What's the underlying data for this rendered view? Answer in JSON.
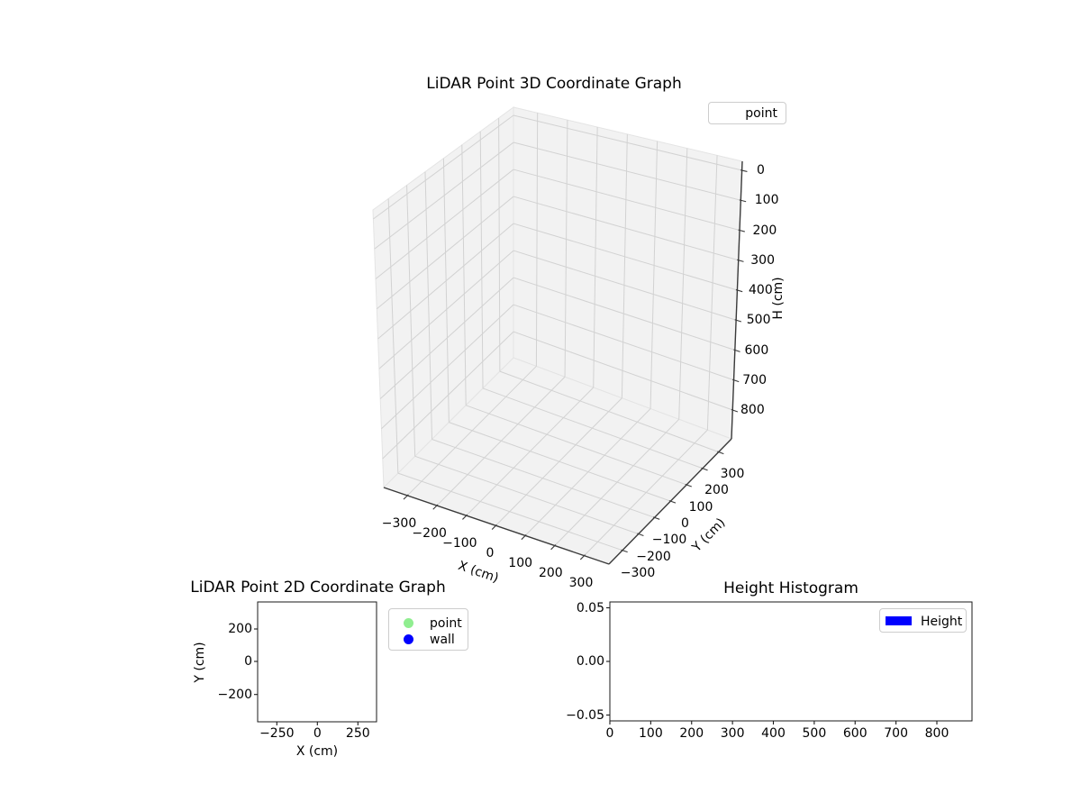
{
  "plot3d": {
    "title": "LiDAR Point 3D Coordinate Graph",
    "legend_label": "point",
    "xlabel": "X (cm)",
    "ylabel": "Y (cm)",
    "zlabel": "H (cm)",
    "x_ticks": [
      "−300",
      "−200",
      "−100",
      "0",
      "100",
      "200",
      "300"
    ],
    "y_ticks": [
      "300",
      "200",
      "100",
      "0",
      "−100",
      "−200",
      "−300"
    ],
    "z_ticks": [
      "0",
      "100",
      "200",
      "300",
      "400",
      "500",
      "600",
      "700",
      "800"
    ]
  },
  "plot2d": {
    "title": "LiDAR Point 2D Coordinate Graph",
    "xlabel": "X (cm)",
    "ylabel": "Y (cm)",
    "x_ticks": [
      "−250",
      "0",
      "250"
    ],
    "y_ticks": [
      "200",
      "0",
      "−200"
    ],
    "legend": [
      {
        "label": "point",
        "color": "#90ee90"
      },
      {
        "label": "wall",
        "color": "#0000ff"
      }
    ]
  },
  "hist": {
    "title": "Height Histogram",
    "x_ticks": [
      "0",
      "100",
      "200",
      "300",
      "400",
      "500",
      "600",
      "700",
      "800"
    ],
    "y_ticks": [
      "0.05",
      "0.00",
      "−0.05"
    ],
    "legend": {
      "label": "Height",
      "color": "#0000ff"
    }
  },
  "colors": {
    "pane": "#f2f2f2",
    "pane_edge": "#e4e4e4",
    "grid": "#d2d2d2",
    "axis3d": "#3a3a3a",
    "spine": "#1a1a1a",
    "point_marker": "#90ee90",
    "wall_marker": "#0000ff",
    "height_bar": "#0000ff"
  },
  "chart_data": [
    {
      "type": "scatter3d",
      "title": "LiDAR Point 3D Coordinate Graph",
      "xlabel": "X (cm)",
      "ylabel": "Y (cm)",
      "zlabel": "H (cm)",
      "xticks": [
        -300,
        -200,
        -100,
        0,
        100,
        200,
        300
      ],
      "yticks": [
        -300,
        -200,
        -100,
        0,
        100,
        200,
        300
      ],
      "zticks": [
        0,
        100,
        200,
        300,
        400,
        500,
        600,
        700,
        800
      ],
      "xlim": [
        -390,
        390
      ],
      "ylim": [
        -390,
        390
      ],
      "zlim": [
        -30,
        900
      ],
      "zaxis_inverted": true,
      "grid": true,
      "legend_position": "upper right",
      "legend_entries": [
        "point"
      ],
      "series": [
        {
          "name": "point",
          "points": []
        }
      ]
    },
    {
      "type": "scatter",
      "title": "LiDAR Point 2D Coordinate Graph",
      "xlabel": "X (cm)",
      "ylabel": "Y (cm)",
      "xticks": [
        -250,
        0,
        250
      ],
      "yticks": [
        -200,
        0,
        200
      ],
      "xlim": [
        -365,
        365
      ],
      "ylim": [
        -365,
        365
      ],
      "grid": false,
      "legend_position": "outside upper right",
      "legend_entries": [
        "point",
        "wall"
      ],
      "series": [
        {
          "name": "point",
          "color": "#90ee90",
          "points": []
        },
        {
          "name": "wall",
          "color": "#0000ff",
          "points": []
        }
      ]
    },
    {
      "type": "histogram",
      "title": "Height Histogram",
      "xlabel": "",
      "ylabel": "",
      "xticks": [
        0,
        100,
        200,
        300,
        400,
        500,
        600,
        700,
        800
      ],
      "yticks": [
        -0.05,
        0.0,
        0.05
      ],
      "xlim": [
        0,
        888
      ],
      "ylim": [
        -0.055,
        0.055
      ],
      "grid": false,
      "legend_position": "upper right",
      "legend_entries": [
        "Height"
      ],
      "series": [
        {
          "name": "Height",
          "color": "#0000ff",
          "values": []
        }
      ]
    }
  ]
}
